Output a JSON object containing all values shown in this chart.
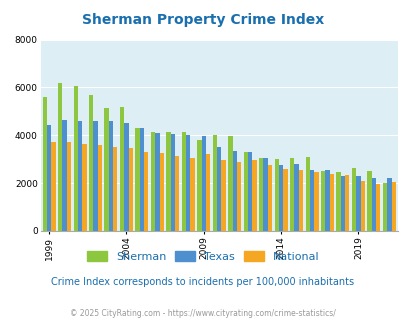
{
  "title": "Sherman Property Crime Index",
  "title_color": "#1a6faf",
  "years": [
    1999,
    2000,
    2001,
    2002,
    2003,
    2004,
    2005,
    2006,
    2007,
    2008,
    2009,
    2010,
    2011,
    2012,
    2013,
    2014,
    2015,
    2016,
    2017,
    2018,
    2019,
    2020,
    2021
  ],
  "sherman": [
    5600,
    6200,
    6050,
    5700,
    5150,
    5200,
    4300,
    4150,
    4150,
    4150,
    3800,
    4000,
    3950,
    3300,
    3050,
    3000,
    3050,
    3100,
    2500,
    2450,
    2650,
    2500,
    2000
  ],
  "texas": [
    4450,
    4650,
    4600,
    4600,
    4600,
    4500,
    4300,
    4100,
    4050,
    4000,
    3950,
    3500,
    3350,
    3300,
    3050,
    2750,
    2800,
    2550,
    2550,
    2300,
    2300,
    2200,
    2200
  ],
  "national": [
    3700,
    3700,
    3650,
    3600,
    3500,
    3450,
    3300,
    3250,
    3150,
    3050,
    3200,
    2950,
    2900,
    2950,
    2750,
    2600,
    2550,
    2450,
    2400,
    2350,
    2100,
    1950,
    2050
  ],
  "sherman_color": "#8dc63f",
  "texas_color": "#4d8fcf",
  "national_color": "#f5a623",
  "bg_color": "#ddeef5",
  "ylim": [
    0,
    8000
  ],
  "yticks": [
    0,
    2000,
    4000,
    6000,
    8000
  ],
  "xtick_years": [
    1999,
    2004,
    2009,
    2014,
    2019
  ],
  "subtitle": "Crime Index corresponds to incidents per 100,000 inhabitants",
  "subtitle_color": "#1a6faf",
  "copyright": "© 2025 CityRating.com - https://www.cityrating.com/crime-statistics/",
  "copyright_color": "#999999",
  "grid_color": "#ffffff"
}
